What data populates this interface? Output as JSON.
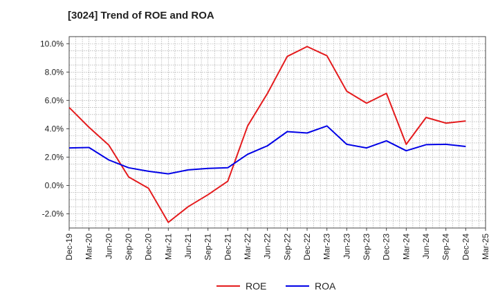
{
  "chart_data": {
    "type": "line",
    "title": "[3024]  Trend of ROE and ROA",
    "xlabel": "",
    "ylabel": "",
    "x": [
      "Dec-19",
      "Mar-20",
      "Jun-20",
      "Sep-20",
      "Dec-20",
      "Mar-21",
      "Jun-21",
      "Sep-21",
      "Dec-21",
      "Mar-22",
      "Jun-22",
      "Sep-22",
      "Dec-22",
      "Mar-23",
      "Jun-23",
      "Sep-23",
      "Dec-23",
      "Mar-24",
      "Jun-24",
      "Sep-24",
      "Dec-24",
      "Mar-25"
    ],
    "ylim": [
      -3.0,
      10.5
    ],
    "yticks": [
      -2.0,
      0.0,
      2.0,
      4.0,
      6.0,
      8.0,
      10.0
    ],
    "ytick_labels": [
      "-2.0%",
      "0.0%",
      "2.0%",
      "4.0%",
      "6.0%",
      "8.0%",
      "10.0%"
    ],
    "grid": true,
    "legend_position": "bottom-center",
    "series": [
      {
        "name": "ROE",
        "color": "#e41a1c",
        "values": [
          5.5,
          4.1,
          2.85,
          0.6,
          -0.2,
          -2.6,
          -1.5,
          -0.65,
          0.3,
          4.2,
          6.5,
          9.1,
          9.8,
          9.15,
          6.65,
          5.8,
          6.5,
          2.9,
          4.8,
          4.4,
          4.55,
          null
        ]
      },
      {
        "name": "ROA",
        "color": "#0000e6",
        "values": [
          2.65,
          2.68,
          1.8,
          1.25,
          1.0,
          0.82,
          1.1,
          1.2,
          1.25,
          2.2,
          2.8,
          3.8,
          3.7,
          4.2,
          2.9,
          2.65,
          3.15,
          2.45,
          2.88,
          2.9,
          2.75,
          null
        ]
      }
    ]
  }
}
